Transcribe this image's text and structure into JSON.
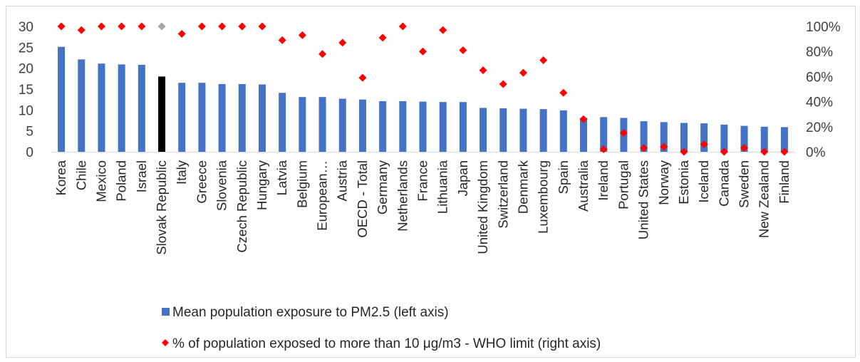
{
  "chart_data": {
    "type": "bar",
    "title": "",
    "categories": [
      "Korea",
      "Chile",
      "Mexico",
      "Poland",
      "Israel",
      "Slovak Republic",
      "Italy",
      "Greece",
      "Slovenia",
      "Czech Republic",
      "Hungary",
      "Latvia",
      "Belgium",
      "European…",
      "Austria",
      "OECD - Total",
      "Germany",
      "Netherlands",
      "France",
      "Lithuania",
      "Japan",
      "United Kingdom",
      "Switzerland",
      "Denmark",
      "Luxembourg",
      "Spain",
      "Australia",
      "Ireland",
      "Portugal",
      "United States",
      "Norway",
      "Estonia",
      "Iceland",
      "Canada",
      "Sweden",
      "New Zealand",
      "Finland"
    ],
    "highlight_category": "Slovak Republic",
    "series": [
      {
        "name": "Mean population exposure to PM2.5 (left axis)",
        "type": "bar",
        "axis": "left",
        "color": "#4472C4",
        "highlight_color": "#000000",
        "values": [
          25.1,
          22.1,
          21.1,
          20.9,
          20.8,
          18.0,
          16.5,
          16.5,
          16.2,
          16.2,
          16.1,
          14.1,
          13.1,
          13.1,
          12.7,
          12.5,
          12.1,
          12.1,
          12.0,
          11.9,
          11.9,
          10.5,
          10.4,
          10.3,
          10.2,
          9.9,
          8.1,
          8.3,
          8.1,
          7.3,
          7.1,
          6.9,
          6.8,
          6.5,
          6.2,
          6.0,
          5.9
        ]
      },
      {
        "name": "% of population exposed to more than 10 μg/m3 - WHO limit (right axis)",
        "type": "scatter",
        "axis": "right",
        "color": "#FF0000",
        "highlight_color": "#A6A6A6",
        "values": [
          100,
          97,
          100,
          100,
          100,
          100,
          94,
          100,
          100,
          100,
          100,
          89,
          93,
          78,
          87,
          59,
          91,
          100,
          80,
          97,
          81,
          65,
          54,
          63,
          73,
          47,
          26,
          2,
          15,
          3,
          4,
          0,
          6,
          0,
          3,
          0,
          0
        ]
      }
    ],
    "left_axis": {
      "min": 0,
      "max": 30,
      "ticks": [
        "0",
        "5",
        "10",
        "15",
        "20",
        "25",
        "30"
      ]
    },
    "right_axis": {
      "min": 0,
      "max": 100,
      "ticks": [
        "0%",
        "20%",
        "40%",
        "60%",
        "80%",
        "100%"
      ]
    },
    "xlabel": "",
    "ylabel": "",
    "grid": false,
    "legend_position": "bottom"
  }
}
